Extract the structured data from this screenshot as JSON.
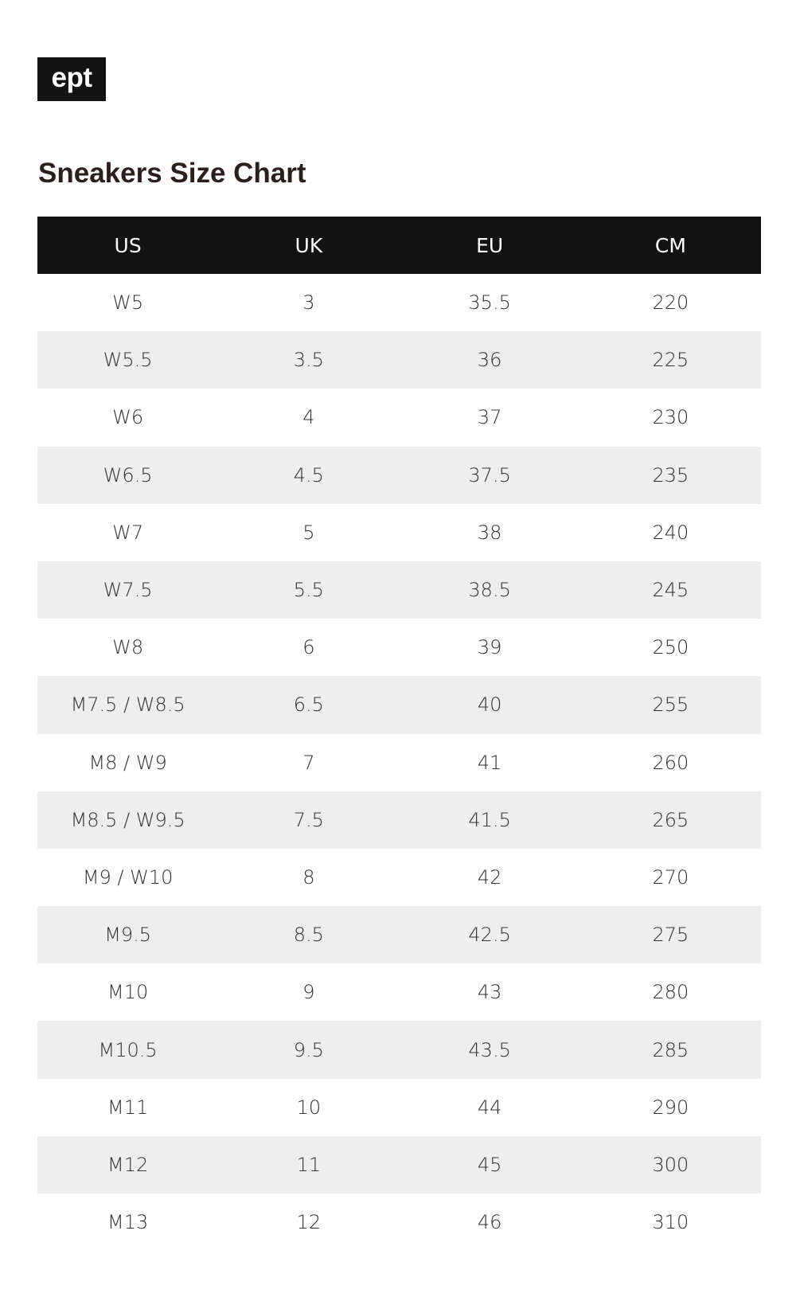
{
  "logo": "ept",
  "title": "Sneakers Size Chart",
  "columns": [
    "US",
    "UK",
    "EU",
    "CM"
  ],
  "rows": [
    [
      "W5",
      "3",
      "35.5",
      "220"
    ],
    [
      "W5.5",
      "3.5",
      "36",
      "225"
    ],
    [
      "W6",
      "4",
      "37",
      "230"
    ],
    [
      "W6.5",
      "4.5",
      "37.5",
      "235"
    ],
    [
      "W7",
      "5",
      "38",
      "240"
    ],
    [
      "W7.5",
      "5.5",
      "38.5",
      "245"
    ],
    [
      "W8",
      "6",
      "39",
      "250"
    ],
    [
      "M7.5 / W8.5",
      "6.5",
      "40",
      "255"
    ],
    [
      "M8 / W9",
      "7",
      "41",
      "260"
    ],
    [
      "M8.5 / W9.5",
      "7.5",
      "41.5",
      "265"
    ],
    [
      "M9 / W10",
      "8",
      "42",
      "270"
    ],
    [
      "M9.5",
      "8.5",
      "42.5",
      "275"
    ],
    [
      "M10",
      "9",
      "43",
      "280"
    ],
    [
      "M10.5",
      "9.5",
      "43.5",
      "285"
    ],
    [
      "M11",
      "10",
      "44",
      "290"
    ],
    [
      "M12",
      "11",
      "45",
      "300"
    ],
    [
      "M13",
      "12",
      "46",
      "310"
    ]
  ]
}
